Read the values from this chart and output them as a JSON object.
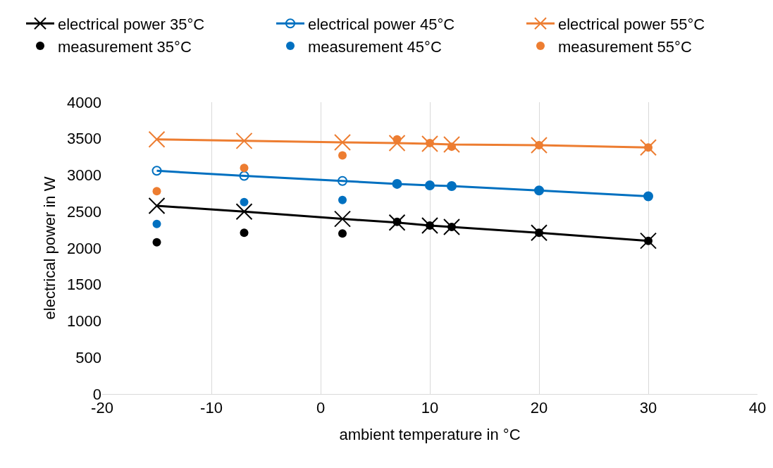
{
  "chart_data": {
    "type": "line",
    "xlabel": "ambient temperature in °C",
    "ylabel": "electrical power in W",
    "xlim": [
      -20,
      40
    ],
    "xticks": [
      -20,
      -10,
      0,
      10,
      20,
      30,
      40
    ],
    "ylim": [
      0,
      4000
    ],
    "yticks": [
      0,
      500,
      1000,
      1500,
      2000,
      2500,
      3000,
      3500,
      4000
    ],
    "grid": "x",
    "legend": "top",
    "line_style": "solid",
    "series": [
      {
        "name": "electrical power 35°C",
        "marker": "cross",
        "color": "#000000",
        "x": [
          -15,
          -7,
          2,
          7,
          10,
          12,
          20,
          30
        ],
        "values": [
          2580,
          2500,
          2400,
          2350,
          2310,
          2290,
          2210,
          2100
        ]
      },
      {
        "name": "electrical power 45°C",
        "marker": "circle-open",
        "color": "#0070c0",
        "x": [
          -15,
          -7,
          2,
          7,
          10,
          12,
          20,
          30
        ],
        "values": [
          3060,
          2990,
          2920,
          2880,
          2860,
          2850,
          2790,
          2710
        ]
      },
      {
        "name": "electrical power 55°C",
        "marker": "cross",
        "color": "#ed7d31",
        "x": [
          -15,
          -7,
          2,
          7,
          10,
          12,
          20,
          30
        ],
        "values": [
          3490,
          3470,
          3450,
          3440,
          3430,
          3420,
          3410,
          3380
        ]
      },
      {
        "name": "measurement 35°C",
        "type": "scatter",
        "marker": "circle",
        "color": "#000000",
        "x": [
          -15,
          -7,
          2,
          7,
          10,
          12,
          20,
          30
        ],
        "values": [
          2080,
          2210,
          2200,
          2360,
          2310,
          2290,
          2210,
          2100
        ]
      },
      {
        "name": "measurement 45°C",
        "type": "scatter",
        "marker": "circle",
        "color": "#0070c0",
        "x": [
          -15,
          -7,
          2,
          7,
          10,
          12,
          20,
          30
        ],
        "values": [
          2330,
          2630,
          2660,
          2880,
          2860,
          2850,
          2790,
          2710
        ]
      },
      {
        "name": "measurement 55°C",
        "type": "scatter",
        "marker": "circle",
        "color": "#ed7d31",
        "x": [
          -15,
          -7,
          2,
          7,
          10,
          12,
          20,
          30
        ],
        "values": [
          2780,
          3100,
          3270,
          3490,
          3440,
          3390,
          3410,
          3380
        ]
      }
    ]
  }
}
